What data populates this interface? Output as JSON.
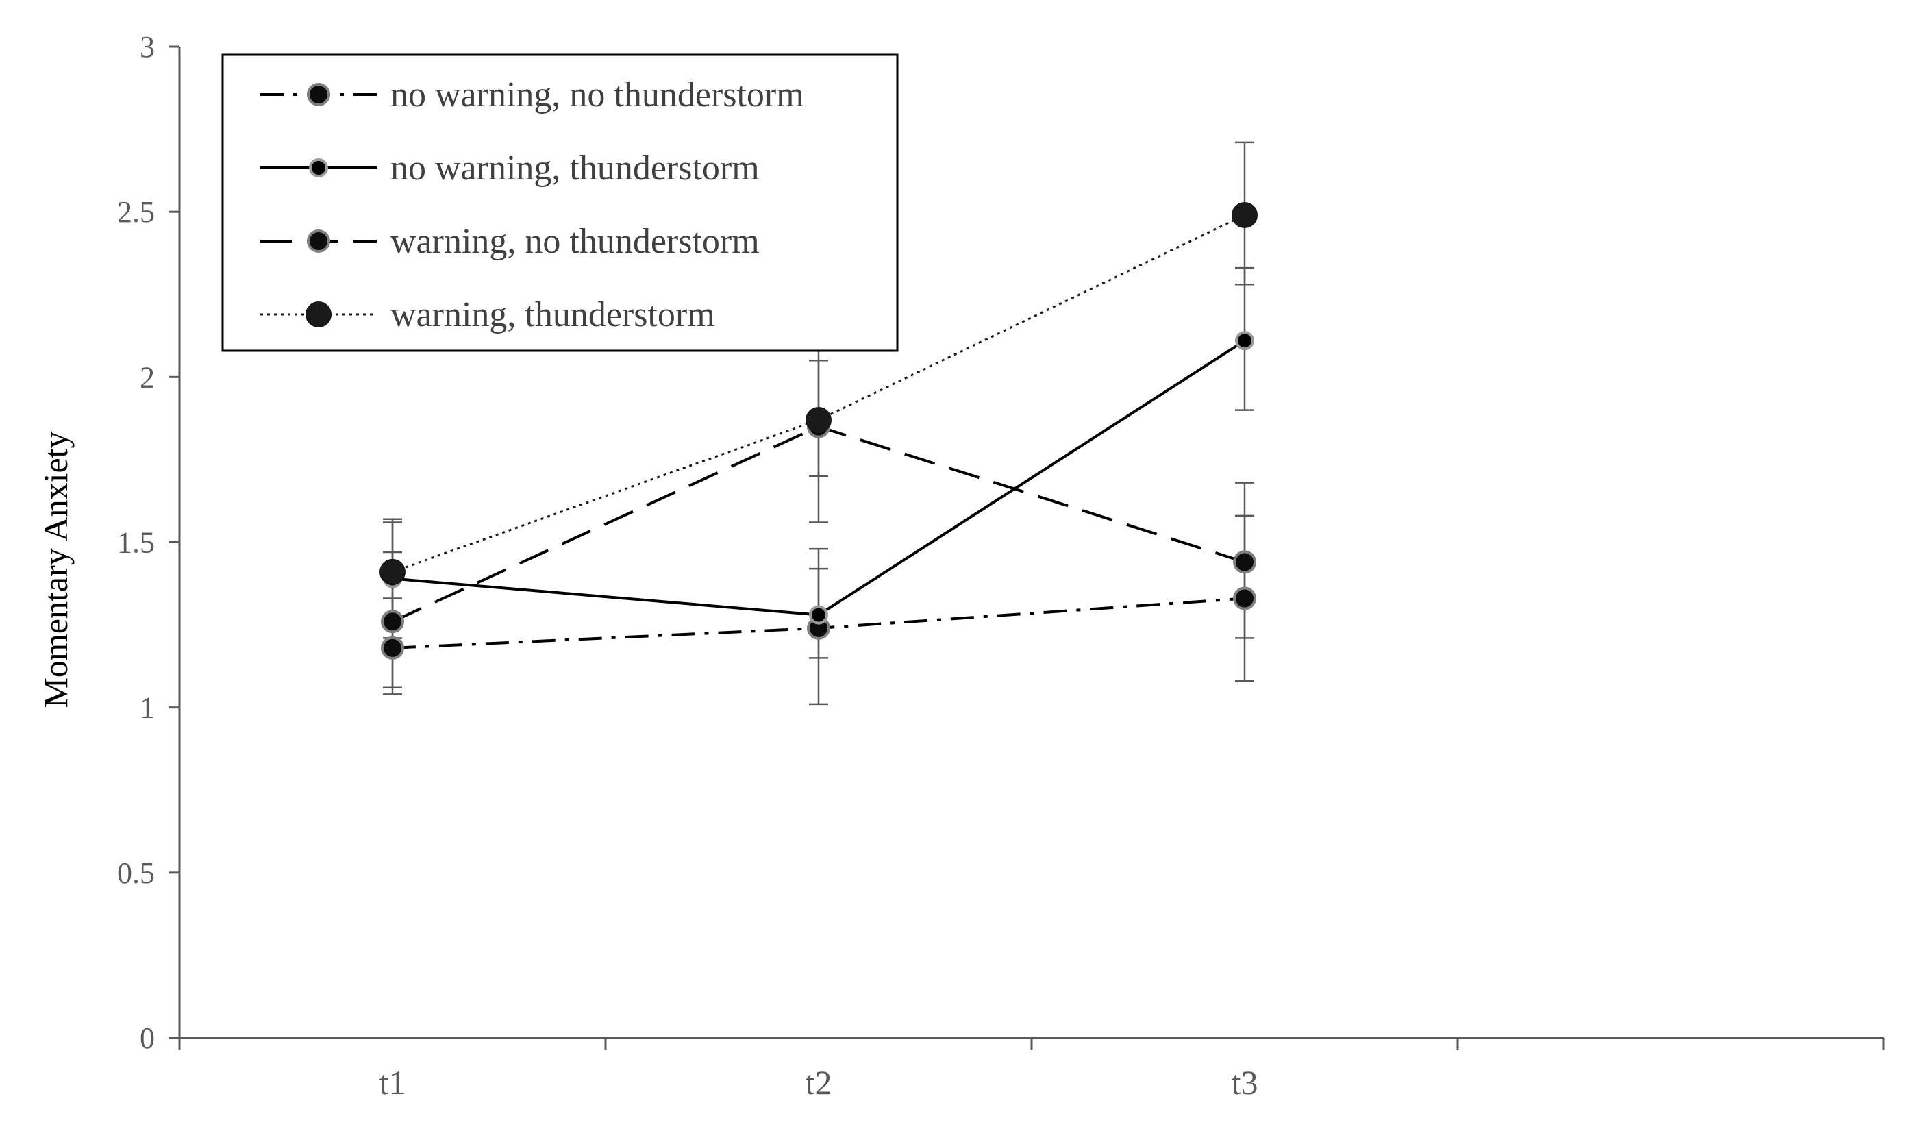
{
  "chart_data": {
    "type": "line",
    "xlabel": "",
    "ylabel": "Momentary Anxiety",
    "categories": [
      "t1",
      "t2",
      "t3"
    ],
    "ylim": [
      0,
      3
    ],
    "yticks": [
      "0",
      "0.5",
      "1",
      "1.5",
      "2",
      "2.5",
      "3"
    ],
    "grid": false,
    "legend_position": "top-left",
    "series": [
      {
        "name": "no warning, no thunderstorm",
        "values": [
          1.18,
          1.24,
          1.33
        ],
        "error_low": [
          1.04,
          1.01,
          1.08
        ],
        "error_high": [
          1.33,
          1.48,
          1.58
        ],
        "line_style": "dash-dot",
        "marker": "medium",
        "color": "#000000"
      },
      {
        "name": "no warning, thunderstorm",
        "values": [
          1.39,
          1.28,
          2.11
        ],
        "error_low": [
          1.21,
          1.15,
          1.9
        ],
        "error_high": [
          1.57,
          1.42,
          2.33
        ],
        "line_style": "solid",
        "marker": "small",
        "color": "#000000"
      },
      {
        "name": "warning, no thunderstorm",
        "values": [
          1.26,
          1.85,
          1.44
        ],
        "error_low": [
          1.06,
          1.56,
          1.21
        ],
        "error_high": [
          1.47,
          2.14,
          1.68
        ],
        "line_style": "long-dash",
        "marker": "medium",
        "color": "#000000"
      },
      {
        "name": "warning, thunderstorm",
        "values": [
          1.41,
          1.87,
          2.49
        ],
        "error_low": [
          1.26,
          1.7,
          2.28
        ],
        "error_high": [
          1.56,
          2.05,
          2.71
        ],
        "line_style": "dotted",
        "marker": "large",
        "color": "#1a1a1a"
      }
    ]
  }
}
